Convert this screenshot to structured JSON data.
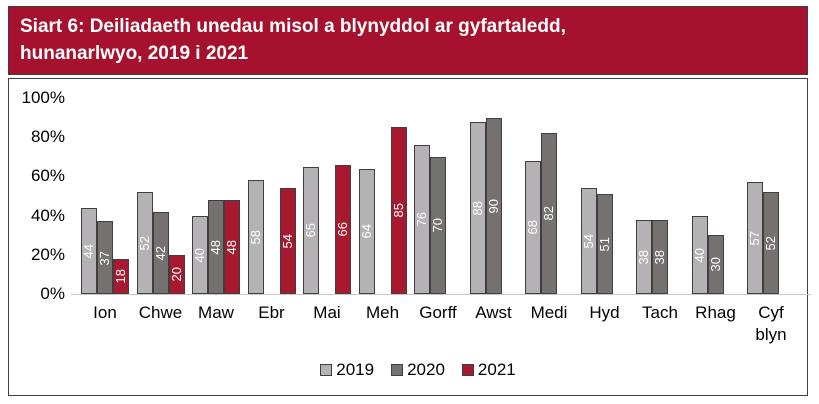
{
  "title": {
    "line1": "Siart 6: Deiliadaeth unedau misol a blynyddol ar gyfartaledd,",
    "line2": "hunanarlwyo, 2019 i 2021"
  },
  "colors": {
    "title_bg": "#a6122e",
    "series_2019": "#b4b2b5",
    "series_2020": "#767171",
    "series_2021": "#a6192e",
    "bar_border": "#3f3f3f",
    "axis_line": "#c9c7c9"
  },
  "chart_data": {
    "type": "bar",
    "title": "Siart 6: Deiliadaeth unedau misol a blynyddol ar gyfartaledd, hunanarlwyo, 2019 i 2021",
    "categories": [
      "Ion",
      "Chwe",
      "Maw",
      "Ebr",
      "Mai",
      "Meh",
      "Gorff",
      "Awst",
      "Medi",
      "Hyd",
      "Tach",
      "Rhag",
      "Cyf blyn"
    ],
    "series": [
      {
        "name": "2019",
        "values": [
          44,
          52,
          40,
          58,
          65,
          64,
          76,
          88,
          68,
          54,
          38,
          40,
          57
        ]
      },
      {
        "name": "2020",
        "values": [
          37,
          42,
          48,
          null,
          null,
          null,
          70,
          90,
          82,
          51,
          38,
          30,
          52
        ]
      },
      {
        "name": "2021",
        "values": [
          18,
          20,
          48,
          54,
          66,
          85,
          null,
          null,
          null,
          null,
          null,
          null,
          null
        ]
      }
    ],
    "xlabel": "",
    "ylabel": "",
    "ylim": [
      0,
      100
    ],
    "yticks": [
      "100%",
      "80%",
      "60%",
      "40%",
      "20%",
      "0%"
    ],
    "grid": false,
    "legend_position": "bottom",
    "value_labels": "inside-vertical-white"
  }
}
